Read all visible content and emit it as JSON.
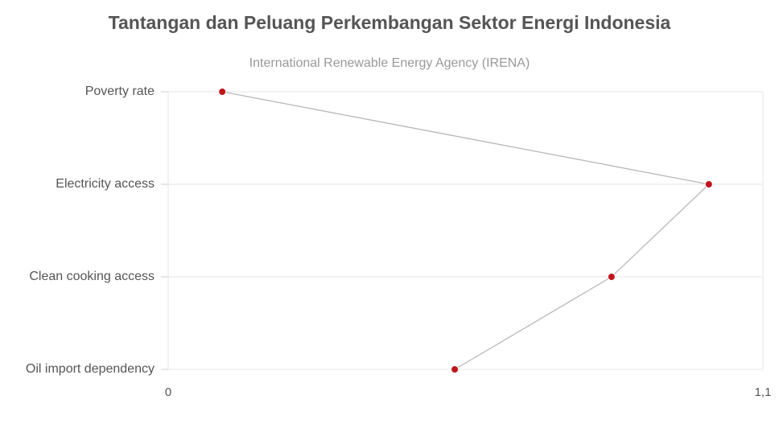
{
  "chart_data": {
    "type": "line",
    "orientation": "horizontal",
    "title": "Tantangan dan Peluang Perkembangan Sektor Energi Indonesia",
    "subtitle": "International Renewable Energy Agency (IRENA)",
    "categories": [
      "Poverty rate",
      "Electricity access",
      "Clean cooking access",
      "Oil import dependency"
    ],
    "values": [
      0.1,
      1.0,
      0.82,
      0.53
    ],
    "color": "#b8b8b8",
    "marker_color": "#c0151b",
    "xlim": [
      0,
      1.1
    ],
    "xticks": [
      0,
      {
        "value": 1.1,
        "label": "1,1"
      }
    ],
    "grid": true
  }
}
